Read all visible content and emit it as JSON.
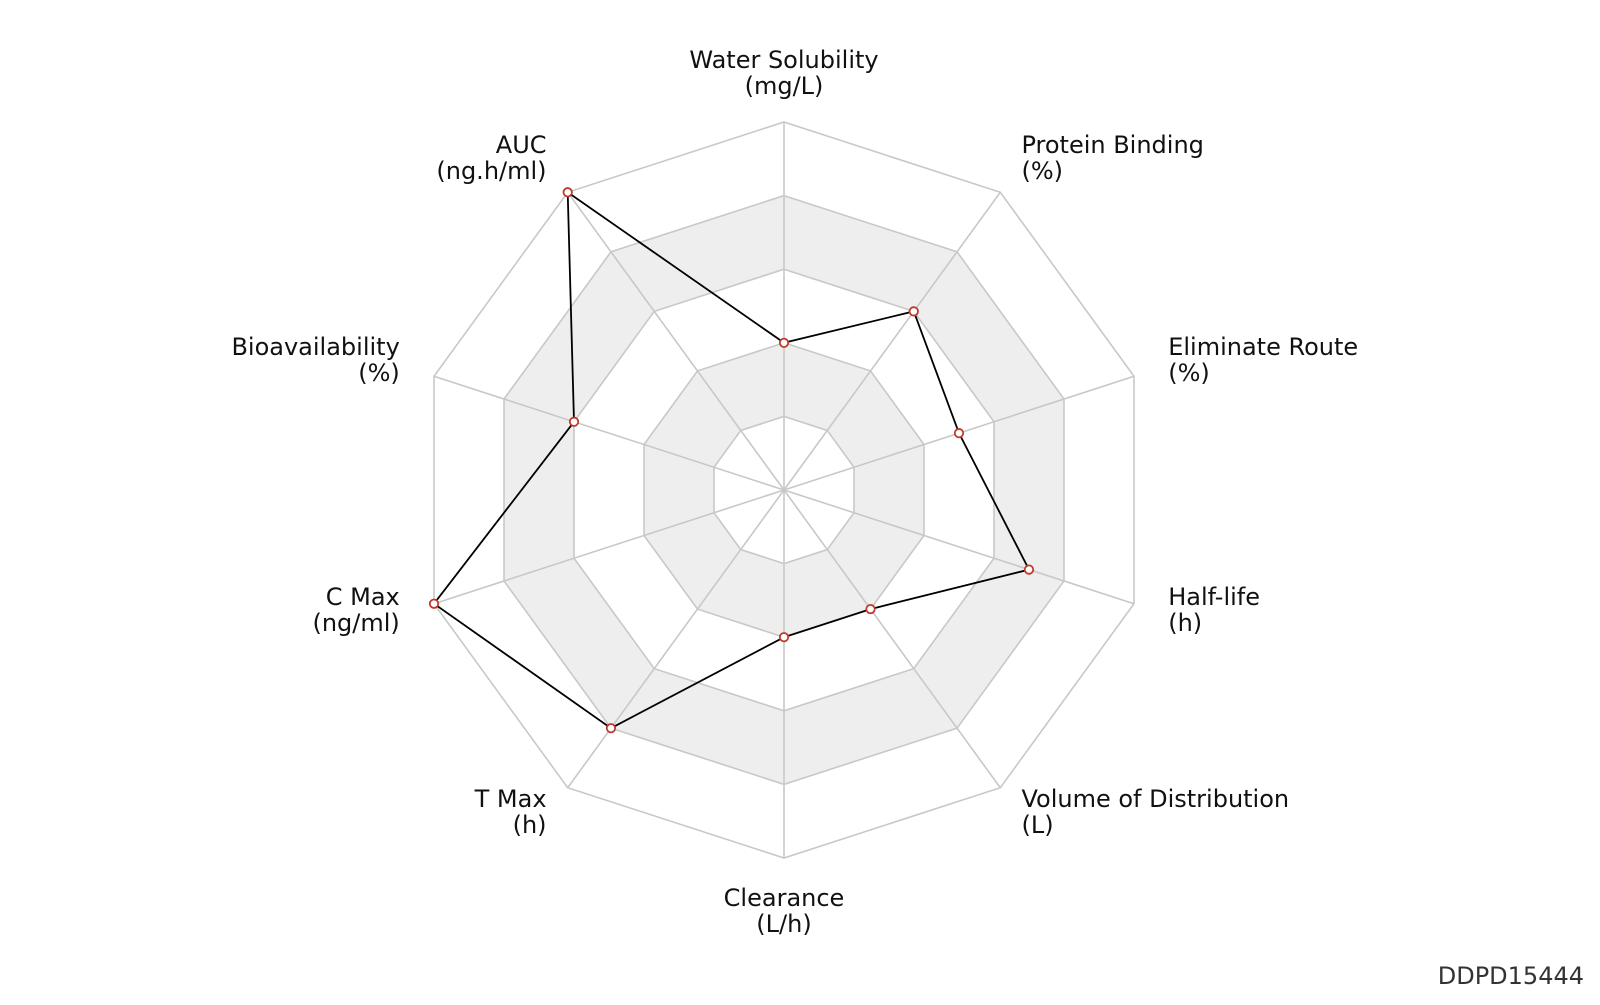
{
  "chart_data": {
    "type": "radar",
    "axes": [
      {
        "name": "Water Solubility",
        "unit": "(mg/L)"
      },
      {
        "name": "Protein Binding",
        "unit": "(%)"
      },
      {
        "name": "Eliminate Route",
        "unit": "(%)"
      },
      {
        "name": "Half-life",
        "unit": "(h)"
      },
      {
        "name": "Volume of Distribution",
        "unit": "(L)"
      },
      {
        "name": "Clearance",
        "unit": "(L/h)"
      },
      {
        "name": "T Max",
        "unit": "(h)"
      },
      {
        "name": "C Max",
        "unit": "(ng/ml)"
      },
      {
        "name": "Bioavailability",
        "unit": "(%)"
      },
      {
        "name": "AUC",
        "unit": "(ng.h/ml)"
      }
    ],
    "rlim": [
      0,
      1
    ],
    "rings": 5,
    "series": [
      {
        "values": [
          0.4,
          0.6,
          0.5,
          0.7,
          0.4,
          0.4,
          0.8,
          1.0,
          0.6,
          1.0
        ]
      }
    ],
    "colors": {
      "line": "#000000",
      "marker_stroke": "#c0392b",
      "marker_fill": "#ffffff",
      "grid": "#c8c8c8",
      "band": "#eeeeee"
    }
  },
  "watermark": "DDPD15444"
}
